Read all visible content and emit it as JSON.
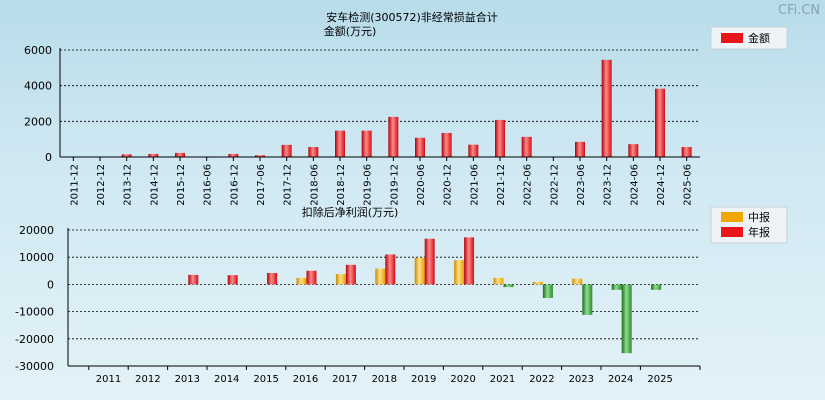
{
  "watermark": "CFi.CN",
  "colors": {
    "red": "#e8151a",
    "red_light": "#ff7a7a",
    "orange": "#f0a800",
    "orange_light": "#ffd466",
    "green": "#2e8b2e",
    "green_light": "#7fd07f"
  },
  "chart_data": [
    {
      "type": "bar",
      "title": "安车检测(300572)非经常损益合计",
      "subtitle": "金额(万元)",
      "legend": [
        {
          "name": "金额",
          "color": "#e8151a"
        }
      ],
      "legend_position": "top-right",
      "ylim": [
        0,
        6000
      ],
      "yticks": [
        0,
        2000,
        4000,
        6000
      ],
      "grid": true,
      "categories": [
        "2011-12",
        "2012-12",
        "2013-12",
        "2014-12",
        "2015-12",
        "2016-06",
        "2016-12",
        "2017-06",
        "2017-12",
        "2018-06",
        "2018-12",
        "2019-06",
        "2019-12",
        "2020-06",
        "2020-12",
        "2021-06",
        "2021-12",
        "2022-06",
        "2022-12",
        "2023-06",
        "2023-12",
        "2024-06",
        "2024-12",
        "2025-06"
      ],
      "values": [
        0,
        0,
        150,
        170,
        230,
        30,
        170,
        100,
        680,
        560,
        1480,
        1480,
        2250,
        1080,
        1350,
        690,
        2080,
        1130,
        0,
        850,
        5450,
        720,
        3830,
        560
      ]
    },
    {
      "type": "bar",
      "title": "扣除后净利润(万元)",
      "legend": [
        {
          "name": "中报",
          "color": "#f0a800"
        },
        {
          "name": "年报",
          "color": "#e8151a"
        }
      ],
      "legend_position": "top-right",
      "ylim": [
        -30000,
        20000
      ],
      "yticks": [
        -30000,
        -20000,
        -10000,
        0,
        10000,
        20000
      ],
      "grid": true,
      "categories": [
        "2011",
        "2012",
        "2013",
        "2014",
        "2015",
        "2016",
        "2017",
        "2018",
        "2019",
        "2020",
        "2021",
        "2022",
        "2023",
        "2024",
        "2025"
      ],
      "series": [
        {
          "name": "中报",
          "values": [
            null,
            null,
            null,
            null,
            null,
            2400,
            3800,
            5800,
            9800,
            8900,
            2400,
            900,
            2100,
            -2000,
            -2000
          ]
        },
        {
          "name": "年报",
          "values": [
            null,
            null,
            3500,
            3400,
            4200,
            5000,
            7200,
            11000,
            16800,
            17300,
            -1000,
            -5000,
            -11200,
            -25300,
            null
          ]
        }
      ]
    }
  ]
}
